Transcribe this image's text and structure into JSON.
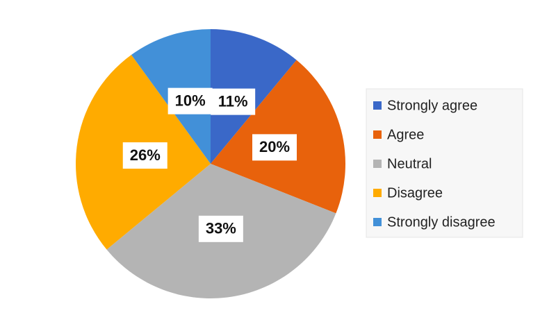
{
  "chart_data": {
    "type": "pie",
    "categories": [
      "Strongly agree",
      "Agree",
      "Neutral",
      "Disagree",
      "Strongly disagree"
    ],
    "values": [
      11,
      20,
      33,
      26,
      10
    ],
    "value_labels": [
      "11%",
      "20%",
      "33%",
      "26%",
      "10%"
    ],
    "colors": [
      "#3a68c8",
      "#e8620c",
      "#b4b4b4",
      "#ffab00",
      "#4290d8"
    ],
    "legend": "right"
  }
}
